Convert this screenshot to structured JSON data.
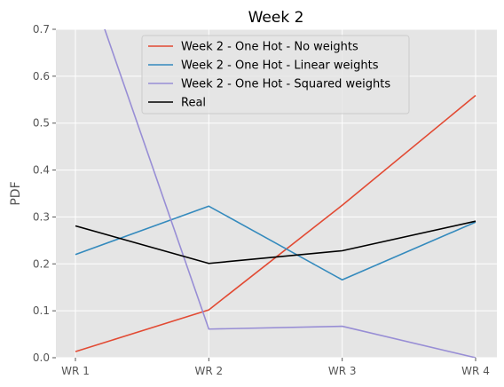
{
  "chart_data": {
    "type": "line",
    "title": "Week 2",
    "xlabel": "",
    "ylabel": "PDF",
    "categories": [
      "WR 1",
      "WR 2",
      "WR 3",
      "WR 4"
    ],
    "ylim": [
      0,
      0.7
    ],
    "yticks": [
      "0.0",
      "0.1",
      "0.2",
      "0.3",
      "0.4",
      "0.5",
      "0.6",
      "0.7"
    ],
    "grid": true,
    "legend_position": "top-center",
    "series": [
      {
        "name": "Week 2 - One Hot - No weights",
        "color": "#E24A33",
        "values": [
          0.013,
          0.102,
          0.325,
          0.559
        ]
      },
      {
        "name": "Week 2 - One Hot - Linear weights",
        "color": "#348ABD",
        "values": [
          0.22,
          0.323,
          0.166,
          0.289
        ]
      },
      {
        "name": "Week 2 - One Hot - Squared weights",
        "color": "#988ED5",
        "values": [
          0.88,
          0.061,
          0.067,
          0.0
        ]
      },
      {
        "name": "Real",
        "color": "#000000",
        "values": [
          0.281,
          0.201,
          0.228,
          0.291
        ]
      }
    ]
  }
}
